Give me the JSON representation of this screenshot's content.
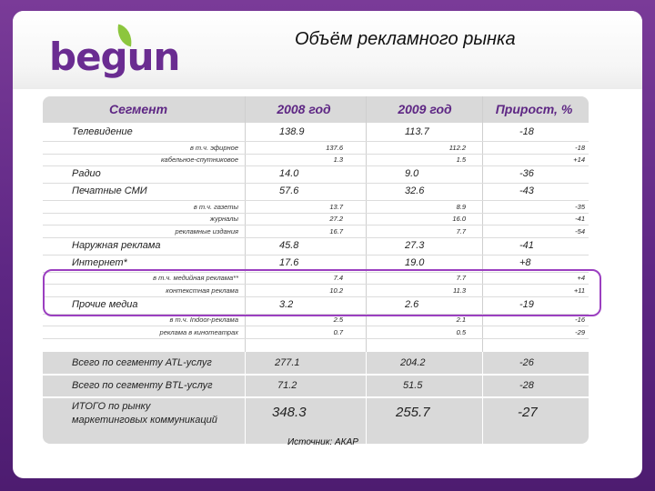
{
  "header": {
    "logo_text": "begun",
    "title": "Объём рекламного рынка"
  },
  "colors": {
    "purple": "#6a2c91",
    "leaf_green": "#8cc63e",
    "highlight": "#9b3fc0"
  },
  "table": {
    "headers": [
      "Сегмент",
      "2008 год",
      "2009 год",
      "Прирост, %"
    ],
    "rows": [
      {
        "label": "Телевидение",
        "v2008": "138.9",
        "v2009": "113.7",
        "growth": "-18",
        "level": "main"
      },
      {
        "label": "в т.ч. эфирное",
        "v2008": "137.6",
        "v2009": "112.2",
        "growth": "-18",
        "level": "sub"
      },
      {
        "label": "кабельное-спутниковое",
        "v2008": "1.3",
        "v2009": "1.5",
        "growth": "+14",
        "level": "sub"
      },
      {
        "label": "Радио",
        "v2008": "14.0",
        "v2009": "9.0",
        "growth": "-36",
        "level": "main"
      },
      {
        "label": "Печатные СМИ",
        "v2008": "57.6",
        "v2009": "32.6",
        "growth": "-43",
        "level": "main"
      },
      {
        "label": "в т.ч. газеты",
        "v2008": "13.7",
        "v2009": "8.9",
        "growth": "-35",
        "level": "sub"
      },
      {
        "label": "журналы",
        "v2008": "27.2",
        "v2009": "16.0",
        "growth": "-41",
        "level": "sub"
      },
      {
        "label": "рекламные издания",
        "v2008": "16.7",
        "v2009": "7.7",
        "growth": "-54",
        "level": "sub"
      },
      {
        "label": "Наружная реклама",
        "v2008": "45.8",
        "v2009": "27.3",
        "growth": "-41",
        "level": "main"
      },
      {
        "label": "Интернет*",
        "v2008": "17.6",
        "v2009": "19.0",
        "growth": "+8",
        "level": "main"
      },
      {
        "label": "в т.ч. медийная реклама**",
        "v2008": "7.4",
        "v2009": "7.7",
        "growth": "+4",
        "level": "sub"
      },
      {
        "label": "контекстная реклама",
        "v2008": "10.2",
        "v2009": "11.3",
        "growth": "+11",
        "level": "sub"
      },
      {
        "label": "Прочие медиа",
        "v2008": "3.2",
        "v2009": "2.6",
        "growth": "-19",
        "level": "main"
      },
      {
        "label": "в т.ч. Indoor-реклама",
        "v2008": "2.5",
        "v2009": "2.1",
        "growth": "-16",
        "level": "sub"
      },
      {
        "label": "реклама в кинотеатрах",
        "v2008": "0.7",
        "v2009": "0.5",
        "growth": "-29",
        "level": "sub"
      }
    ],
    "totals": [
      {
        "label": "Всего по сегменту ATL-услуг",
        "v2008": "277.1",
        "v2009": "204.2",
        "growth": "-26"
      },
      {
        "label": "Всего по сегменту BTL-услуг",
        "v2008": "71.2",
        "v2009": "51.5",
        "growth": "-28"
      },
      {
        "label_line1": "ИТОГО по рынку",
        "label_line2": "маркетинговых коммуникаций",
        "v2008": "348.3",
        "v2009": "255.7",
        "growth": "-27"
      }
    ]
  },
  "source": "Источник: АКАР"
}
